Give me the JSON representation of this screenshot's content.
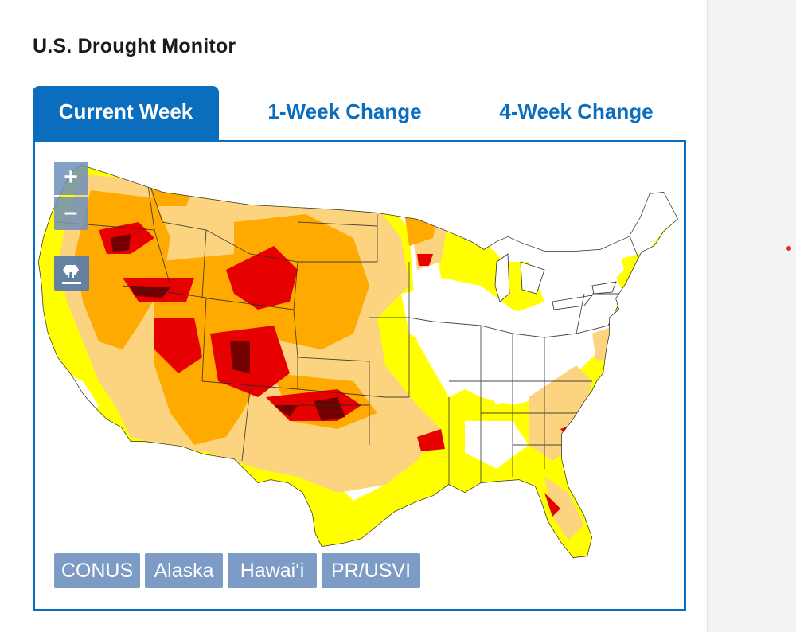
{
  "widget": {
    "title": "U.S. Drought Monitor"
  },
  "tabs": [
    {
      "label": "Current Week",
      "active": true
    },
    {
      "label": "1-Week Change",
      "active": false
    },
    {
      "label": "4-Week Change",
      "active": false
    }
  ],
  "map": {
    "controls": {
      "zoom_in": "+",
      "zoom_out": "–",
      "layers_icon": "layers-download-icon"
    },
    "regions": [
      "CONUS",
      "Alaska",
      "Hawai‘i",
      "PR/USVI"
    ],
    "category_colors": {
      "none": "#ffffff",
      "D0": "#ffff00",
      "D1": "#fcd37f",
      "D2": "#ffaa00",
      "D3": "#e60000",
      "D4": "#730000"
    },
    "accent": "#0b6dbd"
  }
}
